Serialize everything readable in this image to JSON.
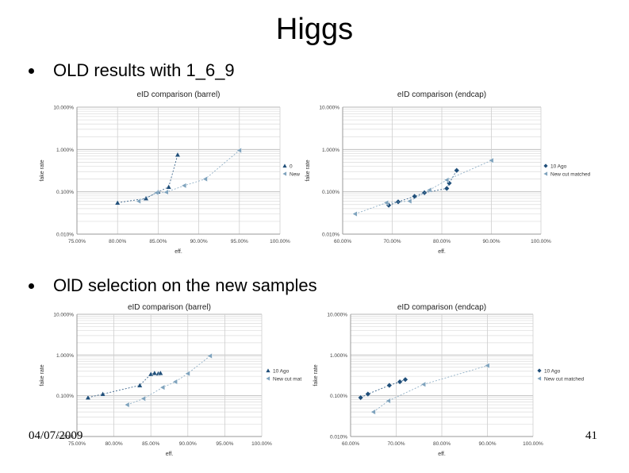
{
  "slide": {
    "title": "Higgs",
    "bullet1": "OLD results with 1_6_9",
    "bullet2": "OlD selection on the new samples",
    "footer_date": "04/07/2009",
    "page_number": "41"
  },
  "chart_data": [
    {
      "type": "scatter",
      "title": "eID comparison (barrel)",
      "xlabel": "eff.",
      "ylabel": "fake rate",
      "xscale": "linear",
      "yscale": "log",
      "xlim": [
        0.75,
        1.0
      ],
      "ylim": [
        0.0001,
        0.1
      ],
      "xticks": [
        "75.00%",
        "80.00%",
        "85.00%",
        "90.00%",
        "95.00%",
        "100.00%"
      ],
      "yticks": [
        "10.000%",
        "1.000%",
        "0.100%",
        "0.010%"
      ],
      "legend_position": "right",
      "series": [
        {
          "name": "0",
          "marker": "triangle",
          "color": "#1f4e79",
          "points": [
            [
              0.8,
              0.00055
            ],
            [
              0.835,
              0.0007
            ],
            [
              0.85,
              0.001
            ],
            [
              0.863,
              0.0013
            ],
            [
              0.874,
              0.0075
            ]
          ]
        },
        {
          "name": "New",
          "marker": "left-triangle",
          "color": "#7fa3bd",
          "points": [
            [
              0.826,
              0.0006
            ],
            [
              0.848,
              0.00095
            ],
            [
              0.86,
              0.00098
            ],
            [
              0.882,
              0.0014
            ],
            [
              0.908,
              0.002
            ],
            [
              0.95,
              0.0095
            ]
          ]
        }
      ]
    },
    {
      "type": "scatter",
      "title": "eID comparison (endcap)",
      "xlabel": "eff.",
      "ylabel": "fake rate",
      "xscale": "linear",
      "yscale": "log",
      "xlim": [
        0.6,
        1.0
      ],
      "ylim": [
        0.0001,
        0.1
      ],
      "xticks": [
        "60.00%",
        "70.00%",
        "80.00%",
        "90.00%",
        "100.00%"
      ],
      "yticks": [
        "10.000%",
        "1.000%",
        "0.100%",
        "0.010%"
      ],
      "legend_position": "right",
      "series": [
        {
          "name": "10 Ago",
          "marker": "diamond",
          "color": "#1f4e79",
          "points": [
            [
              0.693,
              0.00048
            ],
            [
              0.712,
              0.00058
            ],
            [
              0.745,
              0.00078
            ],
            [
              0.765,
              0.00095
            ],
            [
              0.81,
              0.0012
            ],
            [
              0.815,
              0.0016
            ],
            [
              0.83,
              0.0032
            ]
          ]
        },
        {
          "name": "New cut matched",
          "marker": "left-triangle",
          "color": "#7fa3bd",
          "points": [
            [
              0.625,
              0.0003
            ],
            [
              0.688,
              0.00055
            ],
            [
              0.735,
              0.0006
            ],
            [
              0.775,
              0.0011
            ],
            [
              0.81,
              0.0019
            ],
            [
              0.9,
              0.0055
            ]
          ]
        }
      ]
    },
    {
      "type": "scatter",
      "title": "eID comparison (barrel)",
      "xlabel": "eff.",
      "ylabel": "fake rate",
      "xscale": "linear",
      "yscale": "log",
      "xlim": [
        0.75,
        1.0
      ],
      "ylim": [
        0.0001,
        0.1
      ],
      "xticks": [
        "75.00%",
        "80.00%",
        "85.00%",
        "90.00%",
        "95.00%",
        "100.00%"
      ],
      "yticks": [
        "10.000%",
        "1.000%",
        "0.100%",
        "0.010%"
      ],
      "legend_position": "right",
      "series": [
        {
          "name": "10 Ago",
          "marker": "triangle",
          "color": "#1f4e79",
          "points": [
            [
              0.765,
              0.0009
            ],
            [
              0.785,
              0.0011
            ],
            [
              0.835,
              0.0018
            ],
            [
              0.85,
              0.0034
            ],
            [
              0.855,
              0.0036
            ],
            [
              0.86,
              0.0035
            ],
            [
              0.863,
              0.0036
            ]
          ]
        },
        {
          "name": "New cut mat",
          "marker": "left-triangle",
          "color": "#7fa3bd",
          "points": [
            [
              0.818,
              0.0006
            ],
            [
              0.84,
              0.00085
            ],
            [
              0.866,
              0.0016
            ],
            [
              0.883,
              0.0022
            ],
            [
              0.9,
              0.0035
            ],
            [
              0.93,
              0.0095
            ]
          ]
        }
      ]
    },
    {
      "type": "scatter",
      "title": "eID comparison (endcap)",
      "xlabel": "eff.",
      "ylabel": "fake rate",
      "xscale": "linear",
      "yscale": "log",
      "xlim": [
        0.6,
        1.0
      ],
      "ylim": [
        0.0001,
        0.1
      ],
      "xticks": [
        "60.00%",
        "70.00%",
        "80.00%",
        "90.00%",
        "100.00%"
      ],
      "yticks": [
        "10.000%",
        "1.000%",
        "0.100%",
        "0.010%"
      ],
      "legend_position": "right",
      "series": [
        {
          "name": "10 Ago",
          "marker": "diamond",
          "color": "#1f4e79",
          "points": [
            [
              0.622,
              0.0009
            ],
            [
              0.638,
              0.0011
            ],
            [
              0.685,
              0.0018
            ],
            [
              0.708,
              0.0022
            ],
            [
              0.72,
              0.0025
            ]
          ]
        },
        {
          "name": "New cut matched",
          "marker": "left-triangle",
          "color": "#7fa3bd",
          "points": [
            [
              0.65,
              0.0004
            ],
            [
              0.683,
              0.00075
            ],
            [
              0.76,
              0.0019
            ],
            [
              0.9,
              0.0055
            ]
          ]
        }
      ]
    }
  ]
}
